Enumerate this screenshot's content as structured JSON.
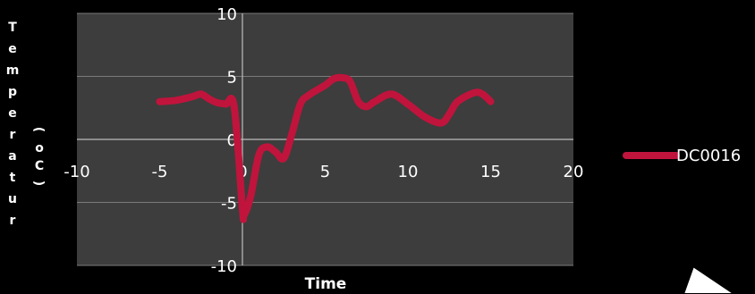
{
  "chart_data": {
    "type": "line",
    "title": "",
    "xlabel": "Time",
    "ylabel_stacked": [
      "T",
      "e",
      "m",
      "p",
      "e",
      "r",
      "a",
      "t",
      "u",
      "r"
    ],
    "ylabel_unit": [
      "(",
      "o",
      "C",
      ")"
    ],
    "xlim": [
      -10,
      20
    ],
    "ylim": [
      -10,
      10
    ],
    "x_ticks": [
      -10,
      -5,
      0,
      5,
      10,
      15,
      20
    ],
    "y_ticks": [
      10,
      5,
      0,
      -5,
      -10
    ],
    "grid": true,
    "legend_position": "right",
    "series": [
      {
        "name": "DC0016",
        "color": "#c0143c",
        "points": [
          [
            -5,
            3.0
          ],
          [
            -4,
            3.1
          ],
          [
            -3,
            3.4
          ],
          [
            -2.5,
            3.6
          ],
          [
            -2,
            3.2
          ],
          [
            -1.5,
            2.9
          ],
          [
            -1,
            2.8
          ],
          [
            -0.5,
            2.6
          ],
          [
            0,
            -5.5
          ],
          [
            0.1,
            -6.0
          ],
          [
            0.5,
            -4.5
          ],
          [
            1,
            -1.2
          ],
          [
            1.5,
            -0.6
          ],
          [
            2,
            -1.0
          ],
          [
            2.5,
            -1.5
          ],
          [
            3,
            0.5
          ],
          [
            3.5,
            2.8
          ],
          [
            4,
            3.5
          ],
          [
            5,
            4.3
          ],
          [
            5.5,
            4.8
          ],
          [
            6,
            4.9
          ],
          [
            6.5,
            4.6
          ],
          [
            7,
            3.0
          ],
          [
            7.5,
            2.6
          ],
          [
            8,
            3.0
          ],
          [
            9,
            3.6
          ],
          [
            10,
            2.8
          ],
          [
            11,
            1.8
          ],
          [
            12,
            1.3
          ],
          [
            12.5,
            2.0
          ],
          [
            13,
            3.0
          ],
          [
            14,
            3.7
          ],
          [
            14.5,
            3.6
          ],
          [
            15,
            3.0
          ]
        ]
      }
    ]
  }
}
